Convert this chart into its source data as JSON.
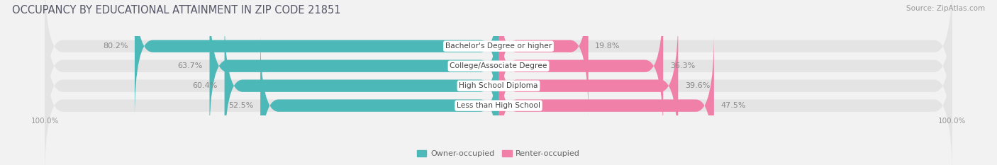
{
  "title": "OCCUPANCY BY EDUCATIONAL ATTAINMENT IN ZIP CODE 21851",
  "source": "Source: ZipAtlas.com",
  "categories": [
    "Less than High School",
    "High School Diploma",
    "College/Associate Degree",
    "Bachelor's Degree or higher"
  ],
  "owner_values": [
    52.5,
    60.4,
    63.7,
    80.2
  ],
  "renter_values": [
    47.5,
    39.6,
    36.3,
    19.8
  ],
  "owner_color": "#4db8b8",
  "renter_color": "#f080a8",
  "bg_color": "#f2f2f2",
  "bar_bg_color": "#e4e4e4",
  "owner_label": "Owner-occupied",
  "renter_label": "Renter-occupied",
  "title_fontsize": 10.5,
  "label_fontsize": 8.0,
  "tick_fontsize": 7.5,
  "source_fontsize": 7.5
}
